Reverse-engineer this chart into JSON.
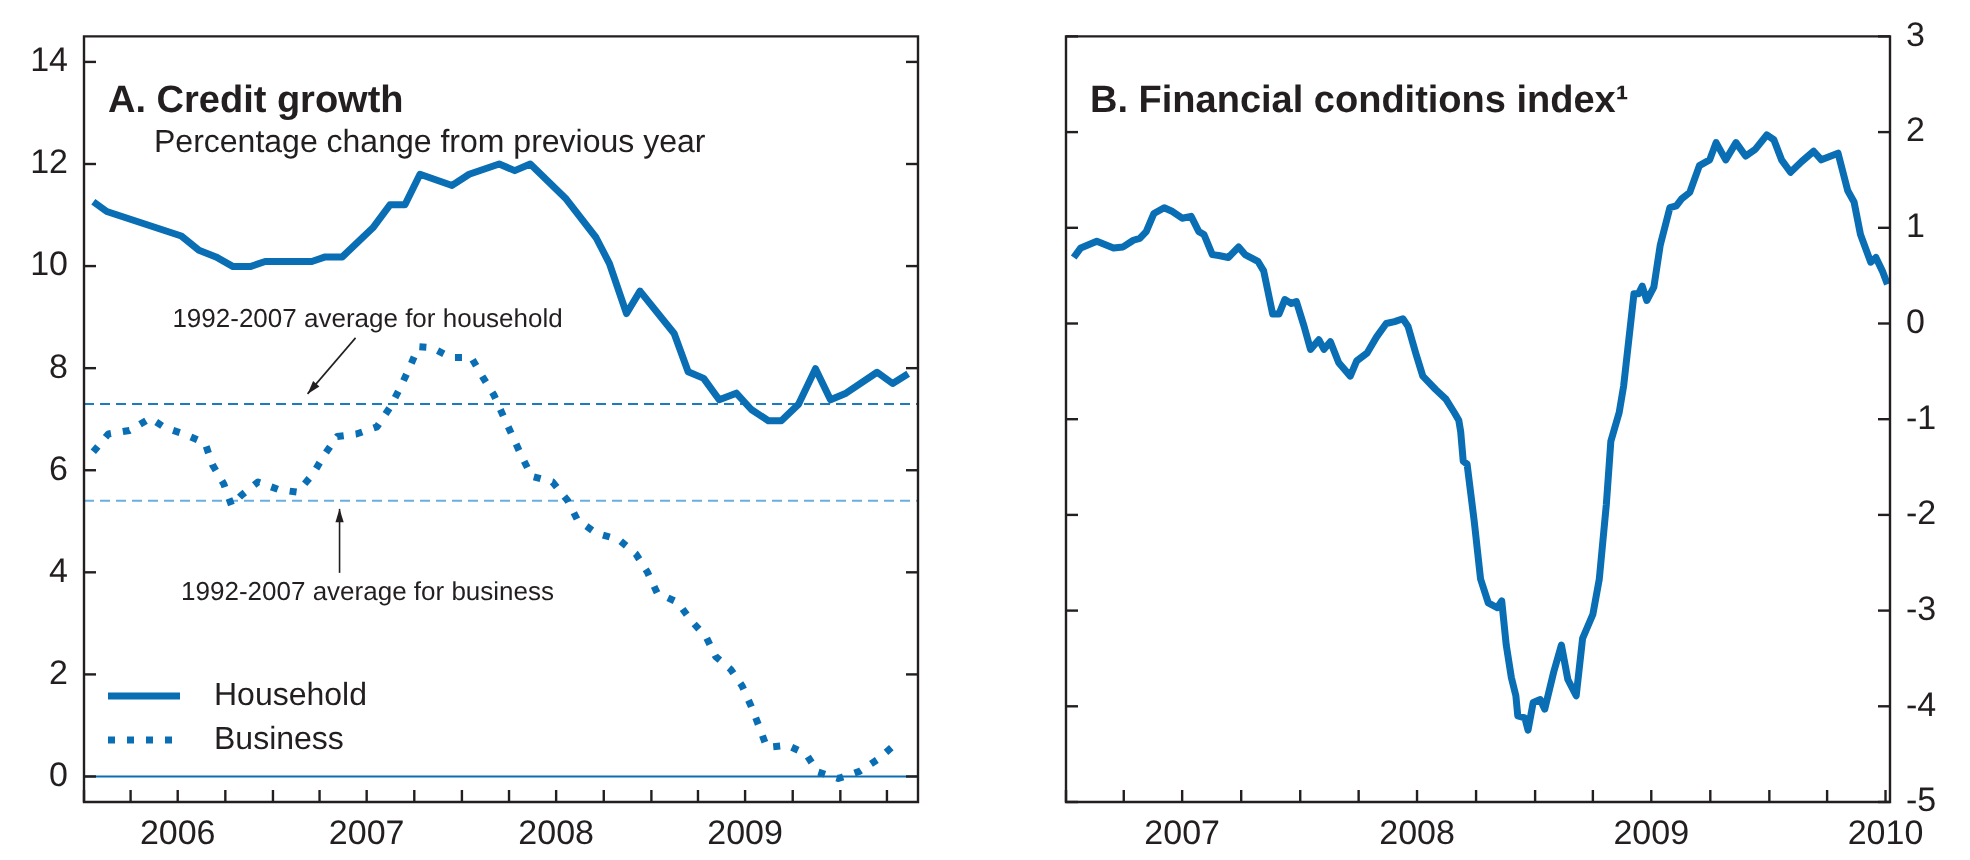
{
  "chart_data": [
    {
      "type": "line",
      "title": "A. Credit growth",
      "subtitle": "Percentage change from previous year",
      "xlim": [
        "2006-01-01",
        "2010-05-31"
      ],
      "xticks": [
        {
          "value": "2006-01-01",
          "label": null
        },
        {
          "value": "2006-04-01",
          "label": null
        },
        {
          "value": "2006-07-01",
          "label": "2006"
        },
        {
          "value": "2006-10-01",
          "label": null
        },
        {
          "value": "2007-01-01",
          "label": null
        },
        {
          "value": "2007-04-01",
          "label": null
        },
        {
          "value": "2007-07-01",
          "label": "2007"
        },
        {
          "value": "2007-10-01",
          "label": null
        },
        {
          "value": "2008-01-01",
          "label": null
        },
        {
          "value": "2008-04-01",
          "label": null
        },
        {
          "value": "2008-07-01",
          "label": "2008"
        },
        {
          "value": "2008-10-01",
          "label": null
        },
        {
          "value": "2009-01-01",
          "label": null
        },
        {
          "value": "2009-04-01",
          "label": null
        },
        {
          "value": "2009-07-01",
          "label": "2009"
        },
        {
          "value": "2009-10-01",
          "label": null
        },
        {
          "value": "2010-01-01",
          "label": null
        },
        {
          "value": "2010-04-01",
          "label": null
        }
      ],
      "ylim": [
        -0.5,
        14.5
      ],
      "yticks": [
        0,
        2,
        4,
        6,
        8,
        10,
        12,
        14
      ],
      "marker": "none",
      "legend": "bottom left",
      "series": [
        {
          "name": "Household",
          "color": "#0a6eb4",
          "line_style": "solid",
          "x": [
            "2006-01-19",
            "2006-02-14",
            "2006-07-08",
            "2006-08-11",
            "2006-09-13",
            "2006-10-16",
            "2006-11-18",
            "2006-12-17",
            "2007-03-17",
            "2007-04-12",
            "2007-05-15",
            "2007-07-13",
            "2007-08-15",
            "2007-09-13",
            "2007-10-12",
            "2007-12-13",
            "2008-01-15",
            "2008-03-13",
            "2008-04-12",
            "2008-05-12",
            "2008-07-19",
            "2008-09-16",
            "2008-10-12",
            "2008-11-14",
            "2008-12-10",
            "2009-02-14",
            "2009-03-13",
            "2009-04-12",
            "2009-05-12",
            "2009-06-14",
            "2009-07-13",
            "2009-08-15",
            "2009-09-09",
            "2009-10-12",
            "2009-11-14",
            "2009-12-13",
            "2010-01-12",
            "2010-03-13",
            "2010-04-12",
            "2010-05-12"
          ],
          "values": [
            11.26,
            11.07,
            10.59,
            10.31,
            10.18,
            9.99,
            9.99,
            10.09,
            10.09,
            10.18,
            10.18,
            10.75,
            11.2,
            11.2,
            11.8,
            11.58,
            11.8,
            12.0,
            11.87,
            12.0,
            11.33,
            10.56,
            10.05,
            9.07,
            9.51,
            8.68,
            7.93,
            7.8,
            7.38,
            7.51,
            7.19,
            6.97,
            6.97,
            7.29,
            7.99,
            7.38,
            7.51,
            7.92,
            7.7,
            7.89
          ]
        },
        {
          "name": "Business",
          "color": "#0a6eb4",
          "line_style": "dotted",
          "x": [
            "2006-01-19",
            "2006-02-17",
            "2006-03-30",
            "2006-05-09",
            "2006-06-07",
            "2006-07-13",
            "2006-08-23",
            "2006-09-06",
            "2006-09-28",
            "2006-10-13",
            "2006-10-31",
            "2006-12-03",
            "2007-01-12",
            "2007-02-17",
            "2007-03-19",
            "2007-04-10",
            "2007-05-05",
            "2007-06-11",
            "2007-07-21",
            "2007-08-15",
            "2007-09-03",
            "2007-09-21",
            "2007-10-09",
            "2007-11-04",
            "2007-12-10",
            "2008-01-19",
            "2008-02-10",
            "2008-03-03",
            "2008-03-21",
            "2008-04-09",
            "2008-04-27",
            "2008-05-15",
            "2008-06-24",
            "2008-07-23",
            "2008-08-11",
            "2008-09-16",
            "2008-10-30",
            "2008-12-02",
            "2008-12-24",
            "2009-01-12",
            "2009-02-21",
            "2009-03-19",
            "2009-04-17",
            "2009-05-05",
            "2009-06-03",
            "2009-06-25",
            "2009-07-13",
            "2009-07-28",
            "2009-08-12",
            "2009-09-21",
            "2009-10-27",
            "2009-11-18",
            "2009-12-28",
            "2010-02-07",
            "2010-03-15",
            "2010-04-17"
          ],
          "values": [
            6.36,
            6.71,
            6.78,
            7.02,
            6.83,
            6.71,
            6.53,
            6.11,
            5.73,
            5.31,
            5.5,
            5.77,
            5.62,
            5.57,
            5.92,
            6.3,
            6.66,
            6.71,
            6.85,
            7.23,
            7.6,
            7.99,
            8.42,
            8.4,
            8.21,
            8.21,
            7.83,
            7.47,
            7.06,
            6.64,
            6.24,
            5.88,
            5.77,
            5.41,
            5.03,
            4.77,
            4.64,
            4.36,
            4.01,
            3.6,
            3.41,
            3.05,
            2.73,
            2.35,
            2.1,
            1.78,
            1.37,
            0.98,
            0.57,
            0.61,
            0.44,
            0.09,
            -0.04,
            0.1,
            0.34,
            0.63
          ]
        }
      ],
      "ref_lines": [
        {
          "axis": "y",
          "value": 7.3,
          "label": "1992-2007 average for household",
          "color": "#1a7cc1",
          "line_style": "dashed"
        },
        {
          "axis": "y",
          "value": 5.4,
          "label": "1992-2007 average for business",
          "color": "#6aaee0",
          "line_style": "dashed"
        },
        {
          "axis": "y",
          "value": 0,
          "color": "#0a6eb4",
          "line_style": "solid"
        }
      ]
    },
    {
      "type": "line",
      "title": "B. Financial conditions index¹",
      "xlim": [
        "2007-01-01",
        "2010-07-08"
      ],
      "xticks": [
        {
          "value": "2007-01-01",
          "label": null
        },
        {
          "value": "2007-04-01",
          "label": null
        },
        {
          "value": "2007-07-01",
          "label": "2007"
        },
        {
          "value": "2007-10-01",
          "label": null
        },
        {
          "value": "2008-01-01",
          "label": null
        },
        {
          "value": "2008-04-01",
          "label": null
        },
        {
          "value": "2008-07-01",
          "label": "2008"
        },
        {
          "value": "2008-10-01",
          "label": null
        },
        {
          "value": "2009-01-01",
          "label": null
        },
        {
          "value": "2009-04-01",
          "label": null
        },
        {
          "value": "2009-07-01",
          "label": "2009"
        },
        {
          "value": "2009-10-01",
          "label": null
        },
        {
          "value": "2010-01-01",
          "label": null
        },
        {
          "value": "2010-04-01",
          "label": null
        },
        {
          "value": "2010-07-01",
          "label": "2010"
        }
      ],
      "y2lim": [
        -5,
        3
      ],
      "y2ticks": [
        -5,
        -4,
        -3,
        -2,
        -1,
        0,
        1,
        2,
        3
      ],
      "marker": "none",
      "series": [
        {
          "color": "#0a6eb4",
          "axis": "y2",
          "x": [
            "2007-01-13",
            "2007-01-24",
            "2007-02-18",
            "2007-03-16",
            "2007-03-31",
            "2007-04-16",
            "2007-04-26",
            "2007-05-06",
            "2007-05-18",
            "2007-06-03",
            "2007-06-16",
            "2007-07-01",
            "2007-07-15",
            "2007-07-27",
            "2007-08-04",
            "2007-08-17",
            "2007-08-27",
            "2007-09-11",
            "2007-09-27",
            "2007-10-07",
            "2007-10-27",
            "2007-11-05",
            "2007-11-19",
            "2007-11-29",
            "2007-12-08",
            "2007-12-18",
            "2007-12-26",
            "2008-01-07",
            "2008-01-17",
            "2008-01-30",
            "2008-02-07",
            "2008-02-17",
            "2008-03-01",
            "2008-03-19",
            "2008-03-29",
            "2008-04-14",
            "2008-04-29",
            "2008-05-14",
            "2008-05-27",
            "2008-06-09",
            "2008-06-17",
            "2008-06-29",
            "2008-07-10",
            "2008-07-30",
            "2008-08-15",
            "2008-08-28",
            "2008-09-04",
            "2008-09-07",
            "2008-09-11",
            "2008-09-17",
            "2008-09-28",
            "2008-10-08",
            "2008-10-20",
            "2008-11-03",
            "2008-11-10",
            "2008-11-17",
            "2008-11-25",
            "2008-12-02",
            "2008-12-05",
            "2008-12-16",
            "2008-12-21",
            "2008-12-29",
            "2009-01-09",
            "2009-01-16",
            "2009-01-30",
            "2009-02-11",
            "2009-02-21",
            "2009-03-06",
            "2009-03-16",
            "2009-04-01",
            "2009-04-11",
            "2009-04-22",
            "2009-04-29",
            "2009-05-12",
            "2009-05-19",
            "2009-06-04",
            "2009-06-11",
            "2009-06-17",
            "2009-06-24",
            "2009-07-05",
            "2009-07-15",
            "2009-07-30",
            "2009-08-09",
            "2009-08-17",
            "2009-08-30",
            "2009-09-14",
            "2009-09-30",
            "2009-10-10",
            "2009-10-25",
            "2009-11-10",
            "2009-11-25",
            "2009-12-10",
            "2009-12-28",
            "2010-01-08",
            "2010-01-20",
            "2010-02-03",
            "2010-02-20",
            "2010-03-11",
            "2010-03-23",
            "2010-04-18",
            "2010-05-03",
            "2010-05-13",
            "2010-05-23",
            "2010-06-08",
            "2010-06-16",
            "2010-06-26",
            "2010-07-04"
          ],
          "values": [
            0.69,
            0.79,
            0.86,
            0.79,
            0.8,
            0.87,
            0.89,
            0.96,
            1.15,
            1.21,
            1.17,
            1.1,
            1.12,
            0.96,
            0.93,
            0.72,
            0.71,
            0.69,
            0.8,
            0.72,
            0.65,
            0.55,
            0.1,
            0.1,
            0.25,
            0.21,
            0.23,
            -0.03,
            -0.27,
            -0.17,
            -0.27,
            -0.19,
            -0.41,
            -0.55,
            -0.39,
            -0.31,
            -0.14,
            0.0,
            0.02,
            0.05,
            -0.03,
            -0.31,
            -0.55,
            -0.69,
            -0.79,
            -0.93,
            -1.01,
            -1.13,
            -1.44,
            -1.47,
            -2.06,
            -2.67,
            -2.92,
            -2.97,
            -2.9,
            -3.36,
            -3.7,
            -3.89,
            -4.1,
            -4.12,
            -4.25,
            -3.96,
            -3.93,
            -4.03,
            -3.64,
            -3.36,
            -3.72,
            -3.89,
            -3.29,
            -3.04,
            -2.67,
            -1.89,
            -1.23,
            -0.93,
            -0.65,
            0.31,
            0.31,
            0.39,
            0.24,
            0.38,
            0.82,
            1.21,
            1.23,
            1.3,
            1.37,
            1.65,
            1.71,
            1.89,
            1.71,
            1.89,
            1.75,
            1.82,
            1.97,
            1.92,
            1.71,
            1.58,
            1.69,
            1.8,
            1.71,
            1.78,
            1.39,
            1.27,
            0.93,
            0.64,
            0.69,
            0.55,
            0.41
          ]
        }
      ]
    }
  ]
}
